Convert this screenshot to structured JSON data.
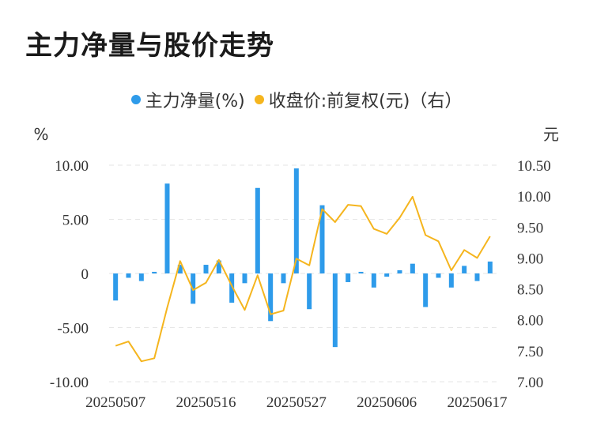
{
  "title": "主力净量与股价走势",
  "legend": [
    {
      "label": "主力净量(%)",
      "color": "#2e9bea"
    },
    {
      "label": "收盘价:前复权(元)（右）",
      "color": "#f5b51e"
    }
  ],
  "left_unit": "%",
  "right_unit": "元",
  "chart_data": {
    "type": "bar+line",
    "x_tick_labels": [
      "20250507",
      "20250516",
      "20250527",
      "20250606",
      "20250617"
    ],
    "y_left": {
      "ticks": [
        "10.00",
        "5.00",
        "0",
        "-5.00",
        "-10.00"
      ],
      "range": [
        -10,
        10
      ]
    },
    "y_right": {
      "ticks": [
        "10.50",
        "10.00",
        "9.50",
        "9.00",
        "8.50",
        "8.00",
        "7.50",
        "7.00"
      ],
      "range": [
        7.0,
        10.5
      ]
    },
    "series": [
      {
        "name": "主力净量(%)",
        "type": "bar",
        "color": "#2e9bea",
        "values": [
          -2.5,
          -0.4,
          -0.7,
          0.15,
          8.3,
          0.8,
          -2.8,
          0.8,
          1.2,
          -2.7,
          -0.9,
          7.9,
          -4.4,
          -0.9,
          9.7,
          -3.3,
          6.3,
          -6.8,
          -0.8,
          0.15,
          -1.3,
          -0.3,
          0.3,
          0.9,
          -3.1,
          -0.4,
          -1.3,
          0.7,
          -0.7,
          1.1
        ]
      },
      {
        "name": "收盘价:前复权(元)（右）",
        "type": "line",
        "color": "#f5b51e",
        "values": [
          7.58,
          7.65,
          7.33,
          7.38,
          8.2,
          8.95,
          8.48,
          8.6,
          8.97,
          8.55,
          8.16,
          8.72,
          8.09,
          8.15,
          8.99,
          8.88,
          9.79,
          9.58,
          9.86,
          9.84,
          9.47,
          9.39,
          9.65,
          9.99,
          9.37,
          9.27,
          8.8,
          9.13,
          9.0,
          9.35
        ]
      }
    ]
  }
}
